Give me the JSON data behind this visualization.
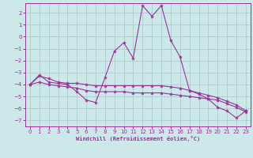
{
  "background_color": "#cce8e8",
  "grid_color": "#aacccc",
  "line_color": "#993399",
  "marker_color": "#993399",
  "xlabel": "Windchill (Refroidissement éolien,°C)",
  "xlim": [
    -0.5,
    23.5
  ],
  "ylim": [
    -7.5,
    2.8
  ],
  "yticks": [
    2,
    1,
    0,
    -1,
    -2,
    -3,
    -4,
    -5,
    -6,
    -7
  ],
  "xticks": [
    0,
    1,
    2,
    3,
    4,
    5,
    6,
    7,
    8,
    9,
    10,
    11,
    12,
    13,
    14,
    15,
    16,
    17,
    18,
    19,
    20,
    21,
    22,
    23
  ],
  "series": [
    {
      "x": [
        0,
        1,
        2,
        3,
        4,
        5,
        6,
        7,
        8,
        9,
        10,
        11,
        12,
        13,
        14,
        15,
        16,
        17,
        18,
        19,
        20,
        21,
        22,
        23
      ],
      "y": [
        -4.0,
        -3.2,
        -3.8,
        -3.9,
        -4.0,
        -4.6,
        -5.3,
        -5.5,
        -3.4,
        -1.2,
        -0.5,
        -1.8,
        2.6,
        1.7,
        2.6,
        -0.3,
        -1.7,
        -4.5,
        -4.8,
        -5.2,
        -5.9,
        -6.2,
        -6.8,
        -6.2
      ]
    },
    {
      "x": [
        0,
        1,
        2,
        3,
        4,
        5,
        6,
        7,
        8,
        9,
        10,
        11,
        12,
        13,
        14,
        15,
        16,
        17,
        18,
        19,
        20,
        21,
        22,
        23
      ],
      "y": [
        -4.0,
        -3.3,
        -3.5,
        -3.8,
        -3.9,
        -3.9,
        -4.0,
        -4.1,
        -4.1,
        -4.1,
        -4.1,
        -4.1,
        -4.1,
        -4.1,
        -4.1,
        -4.2,
        -4.3,
        -4.5,
        -4.7,
        -4.9,
        -5.1,
        -5.4,
        -5.7,
        -6.2
      ]
    },
    {
      "x": [
        0,
        1,
        2,
        3,
        4,
        5,
        6,
        7,
        8,
        9,
        10,
        11,
        12,
        13,
        14,
        15,
        16,
        17,
        18,
        19,
        20,
        21,
        22,
        23
      ],
      "y": [
        -4.0,
        -3.8,
        -4.0,
        -4.1,
        -4.2,
        -4.3,
        -4.5,
        -4.6,
        -4.6,
        -4.6,
        -4.6,
        -4.7,
        -4.7,
        -4.7,
        -4.7,
        -4.8,
        -4.9,
        -5.0,
        -5.1,
        -5.2,
        -5.3,
        -5.6,
        -5.9,
        -6.3
      ]
    }
  ]
}
